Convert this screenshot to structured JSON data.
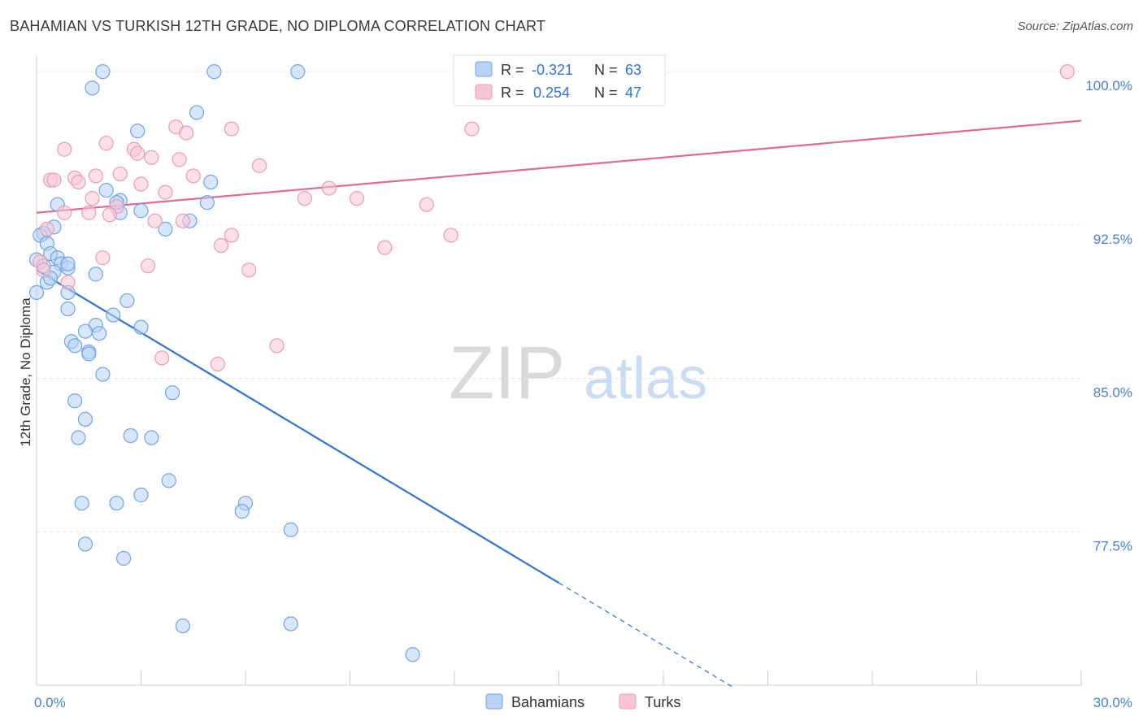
{
  "chart_data": {
    "type": "scatter",
    "title": "BAHAMIAN VS TURKISH 12TH GRADE, NO DIPLOMA CORRELATION CHART",
    "source": "Source: ZipAtlas.com",
    "ylabel": "12th Grade, No Diploma",
    "xlim": [
      0,
      30
    ],
    "ylim": [
      70,
      100.8
    ],
    "x_tick_labels": [
      {
        "value": 0,
        "label": "0.0%"
      },
      {
        "value": 30,
        "label": "30.0%"
      }
    ],
    "x_minor_ticks": [
      3,
      6,
      9,
      12,
      15,
      18,
      21,
      24,
      27,
      30
    ],
    "y_ticks": [
      {
        "value": 100,
        "label": "100.0%"
      },
      {
        "value": 92.5,
        "label": "92.5%"
      },
      {
        "value": 85,
        "label": "85.0%"
      },
      {
        "value": 77.5,
        "label": "77.5%"
      }
    ],
    "grid": true,
    "watermark": {
      "part1": "ZIP",
      "part2": "atlas"
    },
    "legend_top": [
      {
        "r_label": "R = ",
        "r_value": "-0.321",
        "n_label": "N = ",
        "n_value": "63"
      },
      {
        "r_label": "R = ",
        "r_value": "0.254",
        "n_label": "N = ",
        "n_value": "47"
      }
    ],
    "series": [
      {
        "name": "Bahamians",
        "color": "#6fa3e8",
        "fill": "#b8d2f5",
        "line_color": "#2d74d4",
        "trend": {
          "x0": 0,
          "y0": 90.3,
          "x1": 15.0,
          "y1": 75.0,
          "dash_x1": 20.0
        },
        "points": [
          [
            1.9,
            100.0
          ],
          [
            5.1,
            100.0
          ],
          [
            7.5,
            100.0
          ],
          [
            1.6,
            99.2
          ],
          [
            4.6,
            98.0
          ],
          [
            2.9,
            97.1
          ],
          [
            5.0,
            94.6
          ],
          [
            2.0,
            94.2
          ],
          [
            0.6,
            93.5
          ],
          [
            2.4,
            93.7
          ],
          [
            4.9,
            93.6
          ],
          [
            2.4,
            93.1
          ],
          [
            4.4,
            92.7
          ],
          [
            0.5,
            92.4
          ],
          [
            3.7,
            92.3
          ],
          [
            0.2,
            92.1
          ],
          [
            0.1,
            92.0
          ],
          [
            0.3,
            91.6
          ],
          [
            0.4,
            91.1
          ],
          [
            0.6,
            90.9
          ],
          [
            0.7,
            90.6
          ],
          [
            0.9,
            90.4
          ],
          [
            0.5,
            90.2
          ],
          [
            1.7,
            90.1
          ],
          [
            0.3,
            89.7
          ],
          [
            0.0,
            89.2
          ],
          [
            0.9,
            89.2
          ],
          [
            2.6,
            88.8
          ],
          [
            0.9,
            88.4
          ],
          [
            2.2,
            88.1
          ],
          [
            1.7,
            87.6
          ],
          [
            3.0,
            87.5
          ],
          [
            1.4,
            87.3
          ],
          [
            1.8,
            87.2
          ],
          [
            1.0,
            86.8
          ],
          [
            1.1,
            86.6
          ],
          [
            1.5,
            86.3
          ],
          [
            1.5,
            86.2
          ],
          [
            1.9,
            85.2
          ],
          [
            3.9,
            84.3
          ],
          [
            1.1,
            83.9
          ],
          [
            1.4,
            83.0
          ],
          [
            2.7,
            82.2
          ],
          [
            3.3,
            82.1
          ],
          [
            1.2,
            82.1
          ],
          [
            3.8,
            80.0
          ],
          [
            3.0,
            79.3
          ],
          [
            1.3,
            78.9
          ],
          [
            2.3,
            78.9
          ],
          [
            6.0,
            78.9
          ],
          [
            5.9,
            78.5
          ],
          [
            7.3,
            77.6
          ],
          [
            1.4,
            76.9
          ],
          [
            2.5,
            76.2
          ],
          [
            4.2,
            72.9
          ],
          [
            7.3,
            73.0
          ],
          [
            10.8,
            71.5
          ],
          [
            0.0,
            90.8
          ],
          [
            0.2,
            90.5
          ],
          [
            0.9,
            90.6
          ],
          [
            0.4,
            89.9
          ],
          [
            3.0,
            93.2
          ],
          [
            2.3,
            93.6
          ]
        ]
      },
      {
        "name": "Turks",
        "color": "#ec9ab5",
        "fill": "#f7c6d6",
        "line_color": "#e06a95",
        "trend": {
          "x0": 0,
          "y0": 93.1,
          "x1": 30.0,
          "y1": 97.6
        },
        "points": [
          [
            12.3,
            100.0
          ],
          [
            29.6,
            100.0
          ],
          [
            4.0,
            97.3
          ],
          [
            5.6,
            97.2
          ],
          [
            12.5,
            97.2
          ],
          [
            4.3,
            97.0
          ],
          [
            2.0,
            96.5
          ],
          [
            0.8,
            96.2
          ],
          [
            2.8,
            96.2
          ],
          [
            2.9,
            96.0
          ],
          [
            3.3,
            95.8
          ],
          [
            4.1,
            95.7
          ],
          [
            6.4,
            95.4
          ],
          [
            2.4,
            95.0
          ],
          [
            4.5,
            94.9
          ],
          [
            1.7,
            94.9
          ],
          [
            1.1,
            94.8
          ],
          [
            0.4,
            94.7
          ],
          [
            0.5,
            94.7
          ],
          [
            1.2,
            94.6
          ],
          [
            3.0,
            94.5
          ],
          [
            8.4,
            94.3
          ],
          [
            3.7,
            94.1
          ],
          [
            1.6,
            93.8
          ],
          [
            7.7,
            93.8
          ],
          [
            9.2,
            93.8
          ],
          [
            11.2,
            93.5
          ],
          [
            2.3,
            93.4
          ],
          [
            0.8,
            93.1
          ],
          [
            2.1,
            93.0
          ],
          [
            1.5,
            93.1
          ],
          [
            3.4,
            92.7
          ],
          [
            4.2,
            92.7
          ],
          [
            0.3,
            92.3
          ],
          [
            11.9,
            92.0
          ],
          [
            5.6,
            92.0
          ],
          [
            5.3,
            91.5
          ],
          [
            10.0,
            91.4
          ],
          [
            1.9,
            90.9
          ],
          [
            3.2,
            90.5
          ],
          [
            6.1,
            90.3
          ],
          [
            0.1,
            90.7
          ],
          [
            6.9,
            86.6
          ],
          [
            3.6,
            86.0
          ],
          [
            5.2,
            85.7
          ],
          [
            0.2,
            90.3
          ],
          [
            0.9,
            89.7
          ]
        ]
      }
    ]
  }
}
